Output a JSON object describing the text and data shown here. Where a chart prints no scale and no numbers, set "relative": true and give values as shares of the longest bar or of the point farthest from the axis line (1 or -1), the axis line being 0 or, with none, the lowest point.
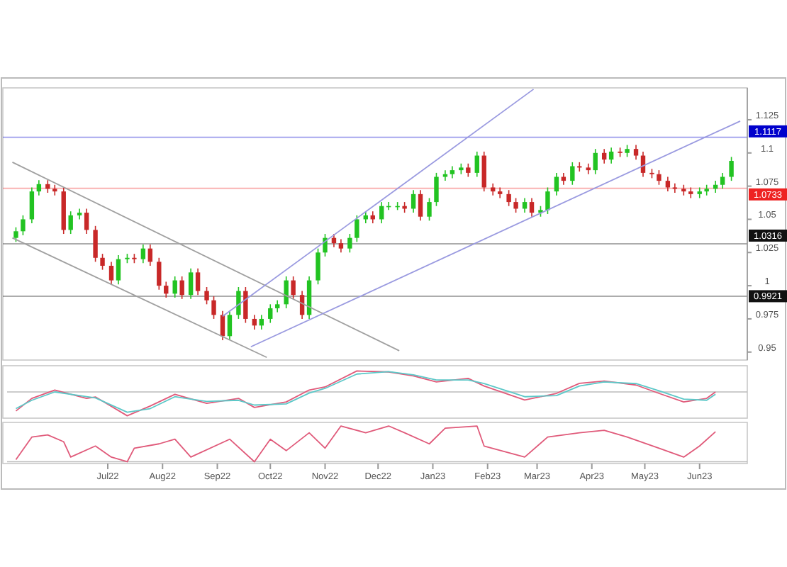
{
  "chart_data": [
    {
      "type": "candlestick",
      "xlim": [
        "2022-05-05",
        "2023-06-28"
      ],
      "ylim": [
        0.944,
        1.149
      ],
      "yticks": [
        1.125,
        1.1,
        1.075,
        1.05,
        1.025,
        1,
        0.975,
        0.95
      ],
      "tick_labels": "y",
      "series": [
        {
          "x": [
            "2022-05-10",
            "2022-05-14",
            "2022-05-19",
            "2022-05-23",
            "2022-05-28",
            "2022-06-01",
            "2022-06-06",
            "2022-06-10",
            "2022-06-15",
            "2022-06-19",
            "2022-06-24",
            "2022-06-28",
            "2022-07-03",
            "2022-07-07",
            "2022-07-12",
            "2022-07-16",
            "2022-07-21",
            "2022-07-25",
            "2022-07-30",
            "2022-08-03",
            "2022-08-08",
            "2022-08-12",
            "2022-08-17",
            "2022-08-21",
            "2022-08-26",
            "2022-08-30",
            "2022-09-04",
            "2022-09-08",
            "2022-09-13",
            "2022-09-17",
            "2022-09-22",
            "2022-09-26",
            "2022-10-01",
            "2022-10-05",
            "2022-10-10",
            "2022-10-14",
            "2022-10-19",
            "2022-10-23",
            "2022-10-28",
            "2022-11-01",
            "2022-11-06",
            "2022-11-10",
            "2022-11-15",
            "2022-11-19",
            "2022-11-24",
            "2022-11-28",
            "2022-12-03",
            "2022-12-07",
            "2022-12-12",
            "2022-12-16",
            "2022-12-21",
            "2022-12-25",
            "2022-12-30",
            "2023-01-03",
            "2023-01-08",
            "2023-01-12",
            "2023-01-17",
            "2023-01-21",
            "2023-01-26",
            "2023-01-30",
            "2023-02-04",
            "2023-02-08",
            "2023-02-13",
            "2023-02-17",
            "2023-02-22",
            "2023-02-26",
            "2023-03-03",
            "2023-03-07",
            "2023-03-12",
            "2023-03-16",
            "2023-03-21",
            "2023-03-25",
            "2023-03-30",
            "2023-04-03",
            "2023-04-08",
            "2023-04-12",
            "2023-04-17",
            "2023-04-21",
            "2023-04-26",
            "2023-04-30",
            "2023-05-05",
            "2023-05-09",
            "2023-05-14",
            "2023-05-18",
            "2023-05-23",
            "2023-05-27",
            "2023-06-01",
            "2023-06-05",
            "2023-06-10",
            "2023-06-14",
            "2023-06-19"
          ],
          "ohlc": [
            [
              1.036,
              1.044,
              1.033,
              1.041
            ],
            [
              1.041,
              1.053,
              1.038,
              1.05
            ],
            [
              1.05,
              1.074,
              1.047,
              1.071
            ],
            [
              1.071,
              1.0795,
              1.068,
              1.0765
            ],
            [
              1.0765,
              1.0795,
              1.07,
              1.073
            ],
            [
              1.073,
              1.076,
              1.068,
              1.071
            ],
            [
              1.071,
              1.074,
              1.039,
              1.042
            ],
            [
              1.042,
              1.056,
              1.039,
              1.053
            ],
            [
              1.053,
              1.058,
              1.05,
              1.055
            ],
            [
              1.055,
              1.058,
              1.039,
              1.042
            ],
            [
              1.042,
              1.045,
              1.018,
              1.021
            ],
            [
              1.021,
              1.024,
              1.012,
              1.015
            ],
            [
              1.015,
              1.018,
              1.001,
              1.004
            ],
            [
              1.004,
              1.023,
              1.001,
              1.02
            ],
            [
              1.02,
              1.024,
              1.017,
              1.021
            ],
            [
              1.021,
              1.024,
              1.017,
              1.02
            ],
            [
              1.02,
              1.031,
              1.017,
              1.028
            ],
            [
              1.028,
              1.031,
              1.015,
              1.018
            ],
            [
              1.018,
              1.021,
              0.997,
              1.0
            ],
            [
              1.0,
              1.003,
              0.991,
              0.994
            ],
            [
              0.994,
              1.007,
              0.991,
              1.004
            ],
            [
              1.004,
              1.007,
              0.99,
              0.993
            ],
            [
              0.993,
              1.013,
              0.99,
              1.01
            ],
            [
              1.01,
              1.013,
              0.993,
              0.996
            ],
            [
              0.996,
              0.999,
              0.986,
              0.989
            ],
            [
              0.989,
              0.992,
              0.975,
              0.978
            ],
            [
              0.978,
              0.981,
              0.959,
              0.962
            ],
            [
              0.962,
              0.981,
              0.959,
              0.978
            ],
            [
              0.978,
              0.999,
              0.975,
              0.996
            ],
            [
              0.996,
              0.999,
              0.972,
              0.975
            ],
            [
              0.975,
              0.978,
              0.967,
              0.97
            ],
            [
              0.97,
              0.978,
              0.967,
              0.975
            ],
            [
              0.975,
              0.986,
              0.972,
              0.983
            ],
            [
              0.983,
              0.989,
              0.98,
              0.986
            ],
            [
              0.986,
              1.007,
              0.983,
              1.004
            ],
            [
              1.004,
              1.007,
              0.99,
              0.993
            ],
            [
              0.993,
              0.996,
              0.975,
              0.978
            ],
            [
              0.978,
              1.007,
              0.975,
              1.004
            ],
            [
              1.004,
              1.028,
              1.001,
              1.025
            ],
            [
              1.025,
              1.039,
              1.022,
              1.036
            ],
            [
              1.036,
              1.039,
              1.029,
              1.032
            ],
            [
              1.032,
              1.035,
              1.025,
              1.028
            ],
            [
              1.028,
              1.039,
              1.025,
              1.036
            ],
            [
              1.036,
              1.053,
              1.033,
              1.05
            ],
            [
              1.05,
              1.056,
              1.047,
              1.053
            ],
            [
              1.053,
              1.056,
              1.047,
              1.05
            ],
            [
              1.05,
              1.063,
              1.047,
              1.06
            ],
            [
              1.06,
              1.063,
              1.057,
              1.06
            ],
            [
              1.06,
              1.063,
              1.057,
              1.06
            ],
            [
              1.06,
              1.063,
              1.055,
              1.058
            ],
            [
              1.058,
              1.072,
              1.055,
              1.069
            ],
            [
              1.069,
              1.072,
              1.049,
              1.052
            ],
            [
              1.052,
              1.066,
              1.049,
              1.063
            ],
            [
              1.063,
              1.085,
              1.06,
              1.082
            ],
            [
              1.082,
              1.087,
              1.079,
              1.084
            ],
            [
              1.084,
              1.09,
              1.081,
              1.087
            ],
            [
              1.087,
              1.092,
              1.084,
              1.089
            ],
            [
              1.089,
              1.092,
              1.082,
              1.085
            ],
            [
              1.085,
              1.101,
              1.082,
              1.098
            ],
            [
              1.098,
              1.101,
              1.071,
              1.074
            ],
            [
              1.074,
              1.077,
              1.068,
              1.071
            ],
            [
              1.071,
              1.074,
              1.066,
              1.069
            ],
            [
              1.069,
              1.072,
              1.06,
              1.063
            ],
            [
              1.063,
              1.066,
              1.055,
              1.058
            ],
            [
              1.058,
              1.066,
              1.055,
              1.063
            ],
            [
              1.063,
              1.066,
              1.052,
              1.055
            ],
            [
              1.055,
              1.06,
              1.052,
              1.057
            ],
            [
              1.057,
              1.074,
              1.054,
              1.071
            ],
            [
              1.071,
              1.085,
              1.068,
              1.082
            ],
            [
              1.082,
              1.085,
              1.076,
              1.079
            ],
            [
              1.079,
              1.093,
              1.076,
              1.09
            ],
            [
              1.09,
              1.093,
              1.086,
              1.089
            ],
            [
              1.089,
              1.092,
              1.084,
              1.087
            ],
            [
              1.087,
              1.103,
              1.084,
              1.1
            ],
            [
              1.1,
              1.103,
              1.092,
              1.095
            ],
            [
              1.095,
              1.104,
              1.092,
              1.101
            ],
            [
              1.101,
              1.104,
              1.097,
              1.1
            ],
            [
              1.1,
              1.106,
              1.097,
              1.103
            ],
            [
              1.103,
              1.106,
              1.095,
              1.098
            ],
            [
              1.098,
              1.101,
              1.082,
              1.085
            ],
            [
              1.085,
              1.088,
              1.081,
              1.084
            ],
            [
              1.084,
              1.087,
              1.076,
              1.079
            ],
            [
              1.079,
              1.082,
              1.071,
              1.074
            ],
            [
              1.074,
              1.077,
              1.07,
              1.073
            ],
            [
              1.073,
              1.076,
              1.068,
              1.071
            ],
            [
              1.071,
              1.074,
              1.066,
              1.069
            ],
            [
              1.069,
              1.074,
              1.066,
              1.071
            ],
            [
              1.071,
              1.076,
              1.068,
              1.073
            ],
            [
              1.073,
              1.079,
              1.07,
              1.076
            ],
            [
              1.076,
              1.085,
              1.073,
              1.082
            ],
            [
              1.082,
              1.097,
              1.079,
              1.094
            ]
          ]
        },
        {
          "type": "line",
          "color": "#a0a0a0",
          "x": [
            "2022-05-08",
            "2022-12-13"
          ],
          "values": [
            1.093,
            0.951
          ]
        },
        {
          "type": "line",
          "color": "#a0a0a0",
          "x": [
            "2022-05-08",
            "2022-09-29"
          ],
          "values": [
            1.036,
            0.946
          ]
        },
        {
          "type": "line",
          "color": "#9a9ae0",
          "x": [
            "2022-09-04",
            "2023-02-27"
          ],
          "values": [
            0.977,
            1.148
          ]
        },
        {
          "type": "line",
          "color": "#9a9ae0",
          "x": [
            "2022-09-20",
            "2023-06-24"
          ],
          "values": [
            0.954,
            1.124
          ]
        }
      ],
      "ref_lines": [
        {
          "axis": "y",
          "value": 1.1117,
          "label": "1.1117",
          "color": "#0000cc"
        },
        {
          "axis": "y",
          "value": 1.0733,
          "label": "1.0733",
          "color": "#ee2222"
        },
        {
          "axis": "y",
          "value": 1.0316,
          "label": "1.0316",
          "color": "#111111"
        },
        {
          "axis": "y",
          "value": 0.9921,
          "label": "0.9921",
          "color": "#111111"
        }
      ]
    },
    {
      "type": "line",
      "relative": true,
      "xlim": [
        "2022-05-05",
        "2023-06-28"
      ],
      "tick_labels": false,
      "series": [
        {
          "color": "#e05a7a",
          "x": [
            "2022-05-10",
            "2022-05-19",
            "2022-06-01",
            "2022-06-19",
            "2022-06-24",
            "2022-07-12",
            "2022-07-25",
            "2022-08-08",
            "2022-08-26",
            "2022-09-13",
            "2022-09-22",
            "2022-10-10",
            "2022-10-23",
            "2022-11-01",
            "2022-11-19",
            "2022-12-07",
            "2022-12-21",
            "2023-01-03",
            "2023-01-21",
            "2023-01-30",
            "2023-02-22",
            "2023-03-12",
            "2023-03-25",
            "2023-04-08",
            "2023-04-26",
            "2023-05-09",
            "2023-05-23",
            "2023-06-05",
            "2023-06-10"
          ],
          "values": [
            -0.8,
            -0.27,
            0.08,
            -0.27,
            -0.21,
            -1,
            -0.59,
            -0.1,
            -0.48,
            -0.27,
            -0.65,
            -0.42,
            0.08,
            0.21,
            0.88,
            0.84,
            0.67,
            0.42,
            0.57,
            0.25,
            -0.34,
            -0.06,
            0.36,
            0.46,
            0.29,
            -0.06,
            -0.42,
            -0.27,
            0
          ]
        },
        {
          "color": "#5cc8c8",
          "x": [
            "2022-05-10",
            "2022-05-19",
            "2022-06-01",
            "2022-06-19",
            "2022-06-24",
            "2022-07-12",
            "2022-07-25",
            "2022-08-08",
            "2022-08-26",
            "2022-09-13",
            "2022-09-22",
            "2022-10-10",
            "2022-10-23",
            "2022-11-01",
            "2022-11-19",
            "2022-12-07",
            "2022-12-21",
            "2023-01-03",
            "2023-01-21",
            "2023-01-30",
            "2023-02-22",
            "2023-03-12",
            "2023-03-25",
            "2023-04-08",
            "2023-04-26",
            "2023-05-09",
            "2023-05-23",
            "2023-06-05",
            "2023-06-10"
          ],
          "values": [
            -0.7,
            -0.35,
            0,
            -0.2,
            -0.25,
            -0.85,
            -0.7,
            -0.2,
            -0.4,
            -0.35,
            -0.55,
            -0.5,
            -0.05,
            0.15,
            0.75,
            0.85,
            0.72,
            0.5,
            0.5,
            0.35,
            -0.2,
            -0.15,
            0.25,
            0.42,
            0.35,
            0.05,
            -0.3,
            -0.35,
            -0.1
          ]
        }
      ]
    },
    {
      "type": "line",
      "relative": true,
      "xlim": [
        "2022-05-05",
        "2023-06-28"
      ],
      "tick_labels": "x",
      "xticks": [
        {
          "value": "2022-07-01",
          "label": "Jul22"
        },
        {
          "value": "2022-08-01",
          "label": "Aug22"
        },
        {
          "value": "2022-09-01",
          "label": "Sep22"
        },
        {
          "value": "2022-10-01",
          "label": "Oct22"
        },
        {
          "value": "2022-11-01",
          "label": "Nov22"
        },
        {
          "value": "2022-12-01",
          "label": "Dec22"
        },
        {
          "value": "2023-01-01",
          "label": "Jan23"
        },
        {
          "value": "2023-02-01",
          "label": "Feb23"
        },
        {
          "value": "2023-03-01",
          "label": "Mar23"
        },
        {
          "value": "2023-04-01",
          "label": "Apr23"
        },
        {
          "value": "2023-05-01",
          "label": "May23"
        },
        {
          "value": "2023-06-01",
          "label": "Jun23"
        }
      ],
      "series": [
        {
          "color": "#e05a7a",
          "x": [
            "2022-05-10",
            "2022-05-19",
            "2022-05-28",
            "2022-06-06",
            "2022-06-10",
            "2022-06-24",
            "2022-07-03",
            "2022-07-12",
            "2022-07-16",
            "2022-07-30",
            "2022-08-08",
            "2022-08-17",
            "2022-09-08",
            "2022-09-22",
            "2022-10-01",
            "2022-10-10",
            "2022-10-23",
            "2022-11-01",
            "2022-11-10",
            "2022-11-24",
            "2022-12-07",
            "2022-12-16",
            "2022-12-30",
            "2023-01-08",
            "2023-01-26",
            "2023-01-30",
            "2023-02-22",
            "2023-03-07",
            "2023-03-25",
            "2023-04-08",
            "2023-04-21",
            "2023-05-09",
            "2023-05-23",
            "2023-06-01",
            "2023-06-10"
          ],
          "values": [
            0.06,
            0.69,
            0.75,
            0.56,
            0.13,
            0.44,
            0.13,
            0,
            0.38,
            0.5,
            0.63,
            0.13,
            0.63,
            0,
            0.63,
            0.31,
            0.81,
            0.38,
            1,
            0.81,
            1,
            0.81,
            0.5,
            0.94,
            1,
            0.44,
            0.13,
            0.69,
            0.81,
            0.88,
            0.69,
            0.38,
            0.13,
            0.44,
            0.84
          ]
        }
      ]
    }
  ]
}
